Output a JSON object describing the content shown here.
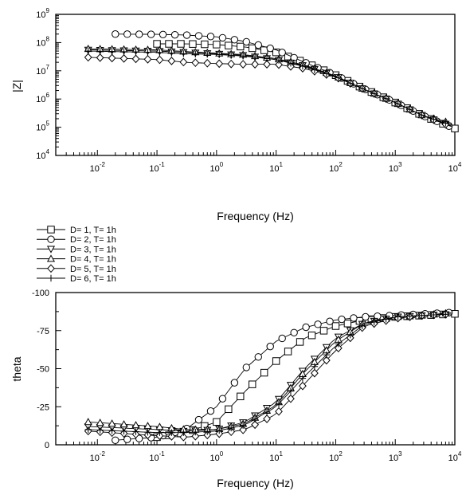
{
  "chart_data": [
    {
      "type": "scatter",
      "title": "",
      "xlabel": "Frequency (Hz)",
      "ylabel": "|Z|",
      "xscale": "log",
      "yscale": "log",
      "xlim": [
        0.002,
        10000
      ],
      "ylim": [
        10000,
        1000000000
      ],
      "xticks": [
        0.01,
        0.1,
        1,
        10,
        100,
        1000,
        10000
      ],
      "yticks": [
        10000,
        100000,
        1000000,
        10000000,
        100000000,
        1000000000
      ],
      "xtick_labels": [
        {
          "b": "10",
          "e": "-2"
        },
        {
          "b": "10",
          "e": "-1"
        },
        {
          "b": "10",
          "e": "0"
        },
        {
          "b": "10",
          "e": "1"
        },
        {
          "b": "10",
          "e": "2"
        },
        {
          "b": "10",
          "e": "3"
        },
        {
          "b": "10",
          "e": "4"
        }
      ],
      "ytick_labels": [
        {
          "b": "10",
          "e": "4"
        },
        {
          "b": "10",
          "e": "5"
        },
        {
          "b": "10",
          "e": "6"
        },
        {
          "b": "10",
          "e": "7"
        },
        {
          "b": "10",
          "e": "8"
        },
        {
          "b": "10",
          "e": "9"
        }
      ],
      "grid": false,
      "series": [
        {
          "name": "D= 1, T= 1h",
          "marker": "square",
          "x": [
            0.1,
            0.3,
            1,
            3,
            10,
            30,
            100,
            300,
            1000,
            3000,
            10000
          ],
          "y": [
            90000000,
            90000000,
            85000000,
            70000000,
            45000000,
            20000000,
            7000000,
            2300000,
            750000,
            250000,
            90000
          ]
        },
        {
          "name": "D= 2, T= 1h",
          "marker": "circle",
          "x": [
            0.02,
            0.1,
            0.3,
            1,
            3,
            10,
            30,
            100,
            300,
            1000,
            3000,
            10000
          ],
          "y": [
            200000000,
            195000000,
            185000000,
            160000000,
            110000000,
            55000000,
            20000000,
            7000000,
            2300000,
            750000,
            250000,
            90000
          ]
        },
        {
          "name": "D= 3, T= 1h",
          "marker": "triangle-down",
          "x": [
            0.007,
            0.1,
            0.3,
            1,
            3,
            10,
            30,
            100,
            300,
            1000,
            3000,
            10000
          ],
          "y": [
            55000000,
            50000000,
            45000000,
            40000000,
            35000000,
            25000000,
            15000000,
            6500000,
            2200000,
            750000,
            250000,
            100000
          ]
        },
        {
          "name": "D= 4, T= 1h",
          "marker": "triangle-up",
          "x": [
            0.007,
            0.1,
            0.3,
            1,
            3,
            10,
            30,
            100,
            300,
            1000,
            3000,
            10000
          ],
          "y": [
            60000000,
            55000000,
            48000000,
            42000000,
            37000000,
            27000000,
            16000000,
            6500000,
            2200000,
            750000,
            250000,
            130000
          ]
        },
        {
          "name": "D= 5, T= 1h",
          "marker": "diamond",
          "x": [
            0.007,
            0.1,
            0.3,
            1,
            3,
            10,
            30,
            100,
            300,
            1000,
            3000,
            10000
          ],
          "y": [
            30000000,
            25000000,
            20000000,
            18000000,
            17000000,
            17000000,
            12000000,
            6000000,
            2200000,
            750000,
            250000,
            95000
          ]
        },
        {
          "name": "D= 6, T= 1h",
          "marker": "plus",
          "x": [
            0.007,
            0.1,
            0.3,
            1,
            3,
            10,
            30,
            100,
            300,
            1000,
            3000,
            10000
          ],
          "y": [
            50000000,
            45000000,
            40000000,
            38000000,
            33000000,
            25000000,
            14000000,
            6200000,
            2200000,
            750000,
            250000,
            110000
          ]
        }
      ]
    },
    {
      "type": "scatter",
      "title": "",
      "xlabel": "Frequency (Hz)",
      "ylabel": "theta",
      "xscale": "log",
      "xlim": [
        0.002,
        10000
      ],
      "ylim": [
        0,
        -100
      ],
      "yaxis_inverted": true,
      "xticks": [
        0.01,
        0.1,
        1,
        10,
        100,
        1000,
        10000
      ],
      "yticks": [
        0,
        -25,
        -50,
        -75,
        -100
      ],
      "xtick_labels": [
        {
          "b": "10",
          "e": "-2"
        },
        {
          "b": "10",
          "e": "-1"
        },
        {
          "b": "10",
          "e": "0"
        },
        {
          "b": "10",
          "e": "1"
        },
        {
          "b": "10",
          "e": "2"
        },
        {
          "b": "10",
          "e": "3"
        },
        {
          "b": "10",
          "e": "4"
        }
      ],
      "ytick_labels": [
        "0",
        "-25",
        "-50",
        "-75",
        "-100"
      ],
      "grid": false,
      "series": [
        {
          "name": "D= 1, T= 1h",
          "marker": "square",
          "x": [
            0.1,
            0.3,
            1,
            3,
            10,
            30,
            100,
            300,
            1000,
            3000,
            10000
          ],
          "y": [
            -5,
            -8,
            -15,
            -35,
            -55,
            -70,
            -78,
            -82,
            -84,
            -85,
            -86
          ]
        },
        {
          "name": "D= 2, T= 1h",
          "marker": "circle",
          "x": [
            0.02,
            0.1,
            0.3,
            1,
            3,
            10,
            30,
            100,
            300,
            1000,
            3000,
            10000
          ],
          "y": [
            -3,
            -5,
            -10,
            -25,
            -50,
            -68,
            -77,
            -82,
            -84,
            -85,
            -86,
            -87
          ]
        },
        {
          "name": "D= 3, T= 1h",
          "marker": "triangle-down",
          "x": [
            0.007,
            0.1,
            0.3,
            1,
            3,
            10,
            30,
            100,
            300,
            1000,
            3000,
            10000
          ],
          "y": [
            -12,
            -10,
            -9,
            -10,
            -15,
            -28,
            -50,
            -70,
            -80,
            -84,
            -85,
            -86
          ]
        },
        {
          "name": "D= 4, T= 1h",
          "marker": "triangle-up",
          "x": [
            0.007,
            0.1,
            0.3,
            1,
            3,
            10,
            30,
            100,
            300,
            1000,
            3000,
            10000
          ],
          "y": [
            -15,
            -12,
            -10,
            -10,
            -14,
            -26,
            -48,
            -68,
            -80,
            -84,
            -85,
            -87
          ]
        },
        {
          "name": "D= 5, T= 1h",
          "marker": "diamond",
          "x": [
            0.007,
            0.1,
            0.3,
            1,
            3,
            10,
            30,
            100,
            300,
            1000,
            3000,
            10000
          ],
          "y": [
            -9,
            -6,
            -5,
            -7,
            -10,
            -20,
            -40,
            -62,
            -78,
            -83,
            -85,
            -86
          ]
        },
        {
          "name": "D= 6, T= 1h",
          "marker": "plus",
          "x": [
            0.007,
            0.1,
            0.3,
            1,
            3,
            10,
            30,
            100,
            300,
            1000,
            3000,
            10000
          ],
          "y": [
            -10,
            -8,
            -8,
            -9,
            -13,
            -25,
            -45,
            -65,
            -79,
            -84,
            -85,
            -86
          ]
        }
      ]
    }
  ],
  "legend": {
    "placement": "between-panels-left",
    "entries": [
      "D= 1, T= 1h",
      "D= 2, T= 1h",
      "D= 3, T= 1h",
      "D= 4, T= 1h",
      "D= 5, T= 1h",
      "D= 6, T= 1h"
    ]
  }
}
